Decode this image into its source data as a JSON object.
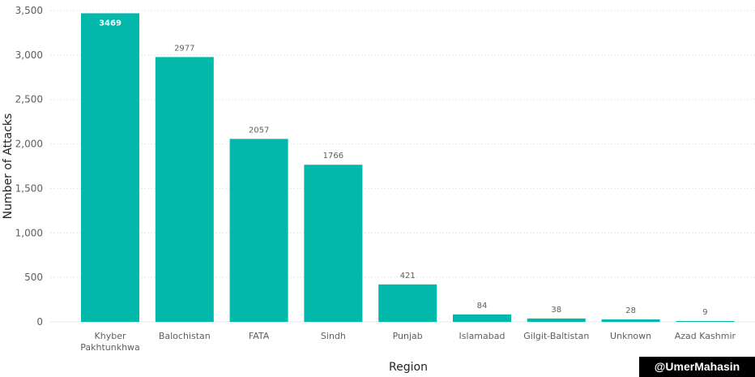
{
  "chart_data": {
    "type": "bar",
    "categories": [
      "Khyber Pakhtunkhwa",
      "Balochistan",
      "FATA",
      "Sindh",
      "Punjab",
      "Islamabad",
      "Gilgit-Baltistan",
      "Unknown",
      "Azad Kashmir"
    ],
    "values": [
      3469,
      2977,
      2057,
      1766,
      421,
      84,
      38,
      28,
      9
    ],
    "data_labels": [
      "3469",
      "2977",
      "2057",
      "1766",
      "421",
      "84",
      "38",
      "28",
      "9"
    ],
    "y_ticks": [
      0,
      500,
      1000,
      1500,
      2000,
      2500,
      3000,
      3500
    ],
    "y_tick_labels": [
      "0",
      "500",
      "1,000",
      "1,500",
      "2,000",
      "2,500",
      "3,000",
      "3,500"
    ],
    "xlabel": "Region",
    "ylabel": "Number of Attacks",
    "ylim": [
      0,
      3500
    ],
    "grid": true,
    "bar_color": "#01b8aa",
    "grid_color": "#dcebec"
  },
  "watermark": "@UmerMahasin"
}
